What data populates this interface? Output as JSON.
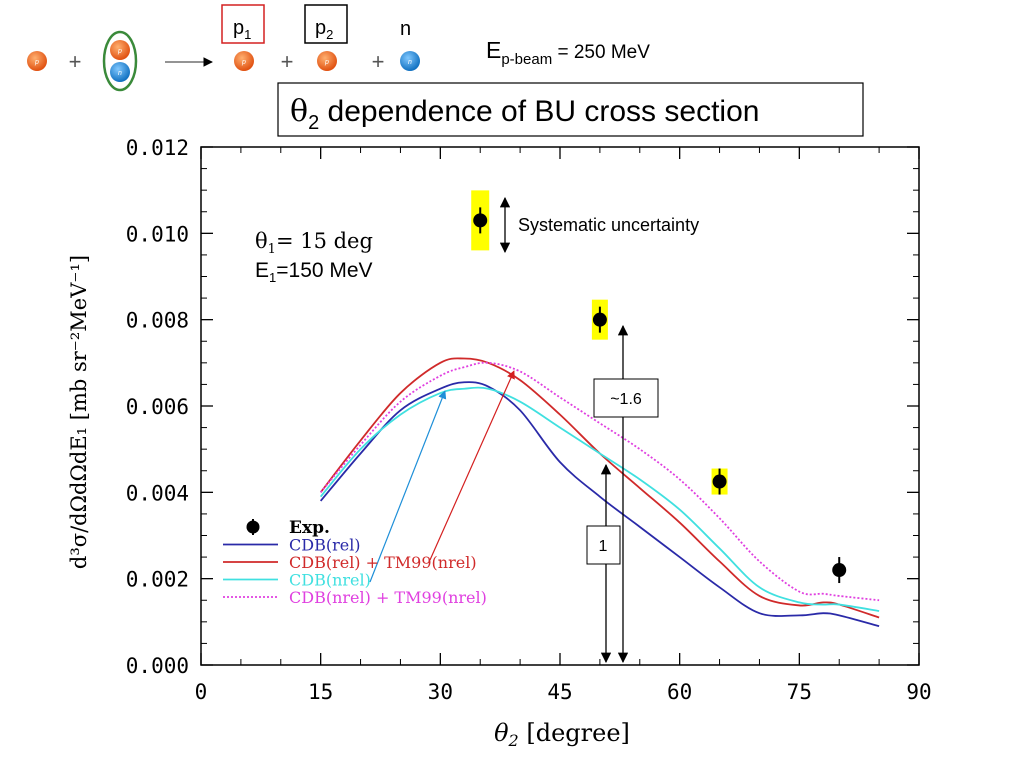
{
  "header": {
    "reaction": {
      "p1_label": "p",
      "p1_sub": "1",
      "p2_label": "p",
      "p2_sub": "2",
      "n_label": "n",
      "plus": "+",
      "proton_letter": "p",
      "neutron_letter": "n",
      "proton_color": "#e8641e",
      "neutron_color": "#1e8fd8",
      "p1_box_color": "#d42020",
      "deuteron_ring_color": "#3a8a3a"
    },
    "beam": {
      "main": "E",
      "sub": "p-beam",
      "rest": " = 250 MeV"
    },
    "title": {
      "theta": "θ",
      "sub": "2",
      "rest": " dependence of BU cross section"
    }
  },
  "annotations": {
    "theta1": {
      "theta": "θ",
      "sub": "1",
      "rest": "= 15 deg"
    },
    "e1": {
      "main": "E",
      "sub": "1",
      "rest": "=150 MeV"
    },
    "systematic": "Systematic uncertainty",
    "ratio_big": "~1.6",
    "ratio_small": "1",
    "highlight_color": "#ffff00"
  },
  "chart_data": {
    "type": "line",
    "xlabel": {
      "theta": "θ",
      "sub": "2",
      "rest": " [degree]"
    },
    "ylabel": "d³σ/dΩdΩdE₁ [mb sr⁻²MeV⁻¹]",
    "xlim": [
      0,
      90
    ],
    "ylim": [
      0.0,
      0.012
    ],
    "x_ticks": [
      "0",
      "15",
      "30",
      "45",
      "60",
      "75",
      "90"
    ],
    "y_ticks": [
      "0.000",
      "0.002",
      "0.004",
      "0.006",
      "0.008",
      "0.010",
      "0.012"
    ],
    "grid": false,
    "legend_position": "lower-left",
    "experiment": {
      "name": "Exp.",
      "points": [
        {
          "x": 35,
          "y": 0.0103
        },
        {
          "x": 50,
          "y": 0.008
        },
        {
          "x": 65,
          "y": 0.00425
        },
        {
          "x": 80,
          "y": 0.0022
        }
      ]
    },
    "series": [
      {
        "name": "CDB(rel)",
        "color": "#2a2aa8",
        "style": "solid",
        "x": [
          15,
          20,
          25,
          30,
          33,
          36,
          40,
          45,
          50,
          55,
          60,
          65,
          70,
          75,
          78,
          80,
          85
        ],
        "y": [
          0.0038,
          0.0049,
          0.0059,
          0.0064,
          0.00655,
          0.00645,
          0.0059,
          0.0047,
          0.0039,
          0.0032,
          0.0025,
          0.0018,
          0.0012,
          0.00115,
          0.0012,
          0.00115,
          0.0009
        ]
      },
      {
        "name": "CDB(rel) + TM99(nrel)",
        "color": "#d02a2a",
        "style": "solid",
        "x": [
          15,
          20,
          25,
          30,
          33,
          36,
          40,
          45,
          50,
          55,
          60,
          65,
          70,
          75,
          78,
          80,
          85
        ],
        "y": [
          0.004,
          0.0052,
          0.0063,
          0.007,
          0.0071,
          0.007,
          0.0066,
          0.0058,
          0.0049,
          0.0041,
          0.0033,
          0.0024,
          0.0016,
          0.00138,
          0.00145,
          0.0014,
          0.0011
        ]
      },
      {
        "name": "CDB(nrel)",
        "color": "#40e0e0",
        "style": "solid",
        "x": [
          15,
          20,
          25,
          30,
          33,
          36,
          40,
          45,
          50,
          55,
          60,
          65,
          70,
          75,
          78,
          80,
          85
        ],
        "y": [
          0.0039,
          0.005,
          0.0058,
          0.0063,
          0.0064,
          0.0064,
          0.0061,
          0.0055,
          0.0049,
          0.0043,
          0.0036,
          0.0027,
          0.0018,
          0.00145,
          0.0014,
          0.0014,
          0.00125
        ]
      },
      {
        "name": "CDB(nrel) + TM99(nrel)",
        "color": "#e040e0",
        "style": "dotted",
        "x": [
          15,
          20,
          25,
          30,
          33,
          36,
          40,
          45,
          50,
          55,
          60,
          65,
          70,
          75,
          78,
          80,
          85
        ],
        "y": [
          0.004,
          0.0051,
          0.0061,
          0.0067,
          0.0069,
          0.007,
          0.0068,
          0.0062,
          0.0056,
          0.005,
          0.0043,
          0.0034,
          0.0024,
          0.0017,
          0.00165,
          0.0016,
          0.0015
        ]
      }
    ]
  }
}
